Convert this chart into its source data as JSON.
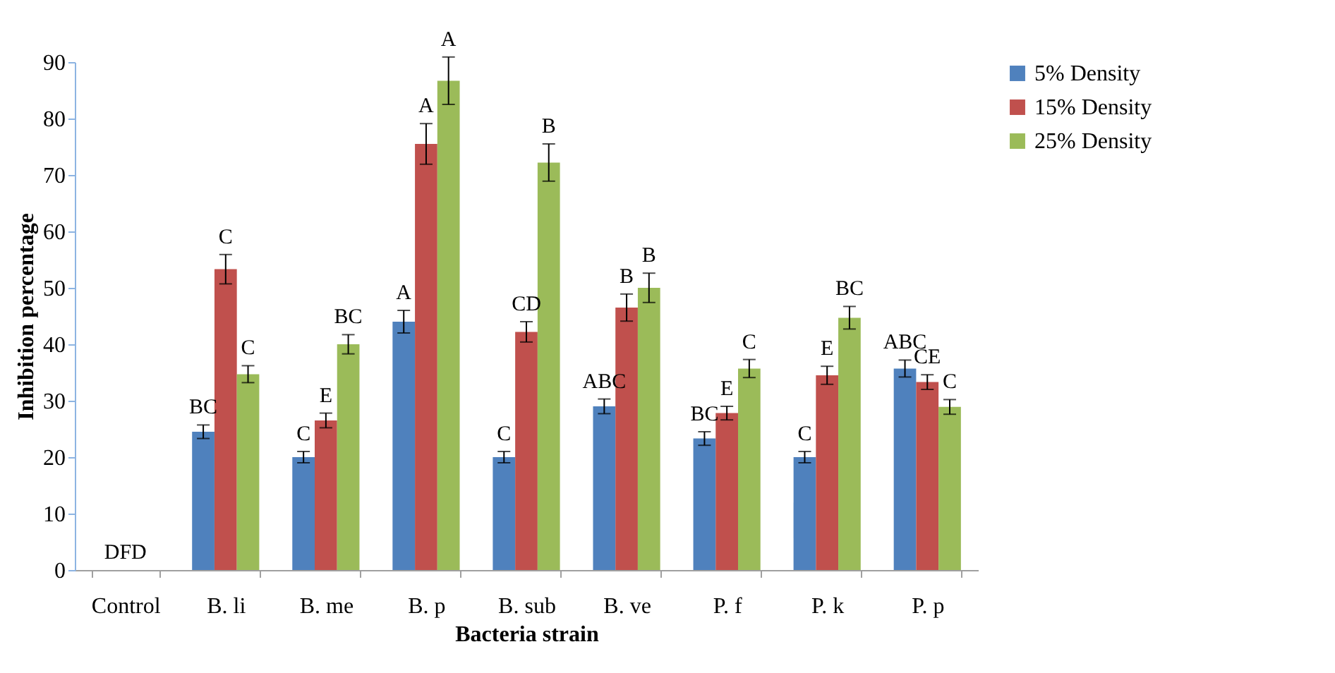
{
  "chart_data": {
    "type": "bar",
    "xlabel": "Bacteria strain",
    "ylabel": "Inhibition percentage",
    "categories": [
      "Control",
      "B. li",
      "B. me",
      "B. p",
      "B. sub",
      "B. ve",
      "P. f",
      "P. k",
      "P. p"
    ],
    "series": [
      {
        "name": "5% Density",
        "color": "#4f81bd",
        "values": [
          0,
          24.5,
          20,
          44,
          20,
          29,
          23.3,
          20,
          35.7
        ],
        "errors": [
          null,
          1.2,
          1,
          2,
          1,
          1.3,
          1.2,
          1,
          1.5
        ]
      },
      {
        "name": "15% Density",
        "color": "#c0504d",
        "values": [
          0,
          53.3,
          26.5,
          75.5,
          42.2,
          46.5,
          27.8,
          34.5,
          33.3
        ],
        "errors": [
          null,
          2.6,
          1.3,
          3.6,
          1.8,
          2.4,
          1.2,
          1.6,
          1.3
        ]
      },
      {
        "name": "25% Density",
        "color": "#9bbb59",
        "values": [
          0,
          34.7,
          40,
          86.7,
          72.2,
          50,
          35.7,
          44.7,
          28.9
        ],
        "errors": [
          null,
          1.5,
          1.7,
          4.2,
          3.3,
          2.6,
          1.6,
          2,
          1.3
        ]
      }
    ],
    "ylim": [
      0,
      90
    ],
    "yticks": [
      0,
      10,
      20,
      30,
      40,
      50,
      60,
      70,
      80,
      90
    ],
    "grid": false,
    "legend": "right",
    "annotations": [
      "DFD",
      "BC",
      "C",
      "C",
      "C",
      "E",
      "BC",
      "A",
      "A",
      "A",
      "C",
      "CD",
      "B",
      "ABC",
      "B",
      "B",
      "BC",
      "E",
      "C",
      "C",
      "E",
      "BC",
      "ABC",
      "CE",
      "C"
    ]
  }
}
